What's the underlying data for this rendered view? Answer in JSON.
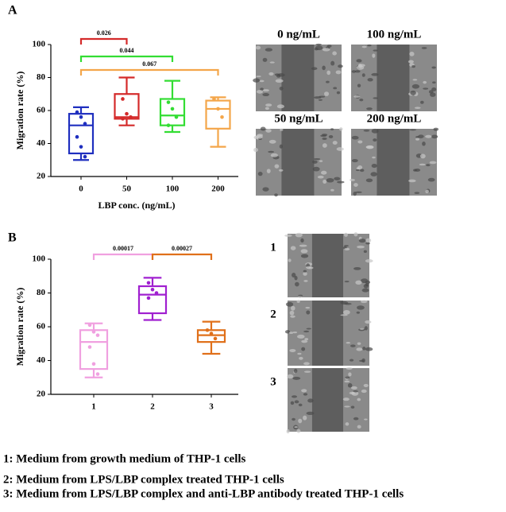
{
  "chart_data": [
    {
      "type": "box",
      "label": "A",
      "ylabel": "Migration rate (%)",
      "xlabel": "LBP conc. (ng/mL)",
      "categories": [
        "0",
        "50",
        "100",
        "200"
      ],
      "ylim": [
        20,
        100
      ],
      "yticks": [
        20,
        40,
        60,
        80,
        100
      ],
      "boxes": [
        {
          "color": "#1f2fbf",
          "min": 30,
          "q1": 34,
          "median": 51,
          "q3": 58,
          "max": 62,
          "points": [
            59,
            56,
            52,
            44,
            38,
            32
          ]
        },
        {
          "color": "#d42a2a",
          "min": 51,
          "q1": 55,
          "median": 56,
          "q3": 70,
          "max": 80,
          "points": [
            67,
            58,
            56,
            55
          ]
        },
        {
          "color": "#33dd33",
          "min": 47,
          "q1": 51,
          "median": 57,
          "q3": 67,
          "max": 78,
          "points": [
            65,
            61,
            56,
            51
          ]
        },
        {
          "color": "#f4a64a",
          "min": 38,
          "q1": 49,
          "median": 61,
          "q3": 66,
          "max": 68,
          "points": [
            67,
            61,
            56
          ]
        }
      ],
      "brackets": [
        {
          "between": [
            "0",
            "50"
          ],
          "label": "0.026",
          "color": "#d42a2a"
        },
        {
          "between": [
            "0",
            "100"
          ],
          "label": "0.044",
          "color": "#33dd33"
        },
        {
          "between": [
            "0",
            "200"
          ],
          "label": "0.067",
          "color": "#f4a64a"
        }
      ],
      "images": [
        "0 ng/mL",
        "100 ng/mL",
        "50 ng/mL",
        "200 ng/mL"
      ]
    },
    {
      "type": "box",
      "label": "B",
      "ylabel": "Migration rate (%)",
      "categories": [
        "1",
        "2",
        "3"
      ],
      "ylim": [
        20,
        100
      ],
      "yticks": [
        20,
        40,
        60,
        80,
        100
      ],
      "boxes": [
        {
          "color": "#f0a0e0",
          "min": 30,
          "q1": 35,
          "median": 51,
          "q3": 58,
          "max": 62,
          "points": [
            61,
            57,
            55,
            48,
            38,
            32
          ]
        },
        {
          "color": "#a020d0",
          "min": 64,
          "q1": 68,
          "median": 79,
          "q3": 84,
          "max": 89,
          "points": [
            86,
            82,
            80,
            77
          ]
        },
        {
          "color": "#e0701a",
          "min": 44,
          "q1": 51,
          "median": 55,
          "q3": 58,
          "max": 63,
          "points": [
            58,
            56,
            53
          ]
        }
      ],
      "brackets": [
        {
          "between": [
            "1",
            "2"
          ],
          "label": "0.00017",
          "color": "#f0a0e0"
        },
        {
          "between": [
            "2",
            "3"
          ],
          "label": "0.00027",
          "color": "#e0701a"
        }
      ],
      "images": [
        "1",
        "2",
        "3"
      ]
    }
  ],
  "notes": [
    "1: Medium from growth medium of THP-1 cells",
    "2: Medium from LPS/LBP complex treated THP-1 cells",
    "3: Medium from LPS/LBP complex and anti-LBP antibody treated THP-1 cells"
  ]
}
